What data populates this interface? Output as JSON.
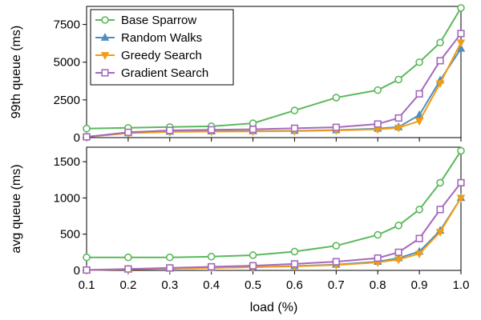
{
  "chart_data": [
    {
      "type": "line",
      "xlabel": "load (%)",
      "ylabel": "99th queue (ms)",
      "xlim": [
        0.1,
        1.0
      ],
      "ylim": [
        0,
        8700
      ],
      "x_ticks": [
        "0.1",
        "0.2",
        "0.3",
        "0.4",
        "0.5",
        "0.6",
        "0.7",
        "0.8",
        "0.9",
        "1.0"
      ],
      "y_ticks": [
        "0",
        "2500",
        "5000",
        "7500"
      ],
      "legend_position": "top-left",
      "x": [
        0.1,
        0.2,
        0.3,
        0.4,
        0.5,
        0.6,
        0.7,
        0.8,
        0.85,
        0.9,
        0.95,
        1.0
      ],
      "series": [
        {
          "name": "Base Sparrow",
          "color": "#5cb85c",
          "marker": "circle-open",
          "values": [
            600,
            650,
            700,
            750,
            950,
            1800,
            2650,
            3150,
            3850,
            5000,
            6300,
            8600
          ]
        },
        {
          "name": "Random Walks",
          "color": "#4f8fc0",
          "marker": "triangle-up",
          "values": [
            50,
            300,
            400,
            420,
            430,
            450,
            500,
            600,
            700,
            1500,
            3800,
            5900
          ]
        },
        {
          "name": "Greedy Search",
          "color": "#f39c12",
          "marker": "triangle-down",
          "values": [
            50,
            300,
            380,
            400,
            410,
            430,
            480,
            550,
            650,
            1100,
            3600,
            6300
          ]
        },
        {
          "name": "Gradient Search",
          "color": "#a569bd",
          "marker": "square-open",
          "values": [
            50,
            350,
            480,
            520,
            550,
            620,
            680,
            900,
            1300,
            2900,
            5100,
            6900
          ]
        }
      ]
    },
    {
      "type": "line",
      "xlabel": "load (%)",
      "ylabel": "avg queue (ms)",
      "xlim": [
        0.1,
        1.0
      ],
      "ylim": [
        0,
        1700
      ],
      "x_ticks": [
        "0.1",
        "0.2",
        "0.3",
        "0.4",
        "0.5",
        "0.6",
        "0.7",
        "0.8",
        "0.9",
        "1.0"
      ],
      "y_ticks": [
        "0",
        "500",
        "1000",
        "1500"
      ],
      "x": [
        0.1,
        0.2,
        0.3,
        0.4,
        0.5,
        0.6,
        0.7,
        0.8,
        0.85,
        0.9,
        0.95,
        1.0
      ],
      "series": [
        {
          "name": "Base Sparrow",
          "color": "#5cb85c",
          "marker": "circle-open",
          "values": [
            180,
            180,
            180,
            190,
            210,
            260,
            340,
            490,
            620,
            840,
            1210,
            1650
          ]
        },
        {
          "name": "Random Walks",
          "color": "#4f8fc0",
          "marker": "triangle-up",
          "values": [
            5,
            15,
            25,
            35,
            45,
            60,
            80,
            120,
            170,
            260,
            550,
            1000
          ]
        },
        {
          "name": "Greedy Search",
          "color": "#f39c12",
          "marker": "triangle-down",
          "values": [
            5,
            15,
            25,
            35,
            45,
            55,
            75,
            110,
            150,
            230,
            530,
            1000
          ]
        },
        {
          "name": "Gradient Search",
          "color": "#a569bd",
          "marker": "square-open",
          "values": [
            5,
            20,
            35,
            50,
            65,
            90,
            120,
            170,
            250,
            440,
            840,
            1210
          ]
        }
      ]
    }
  ]
}
